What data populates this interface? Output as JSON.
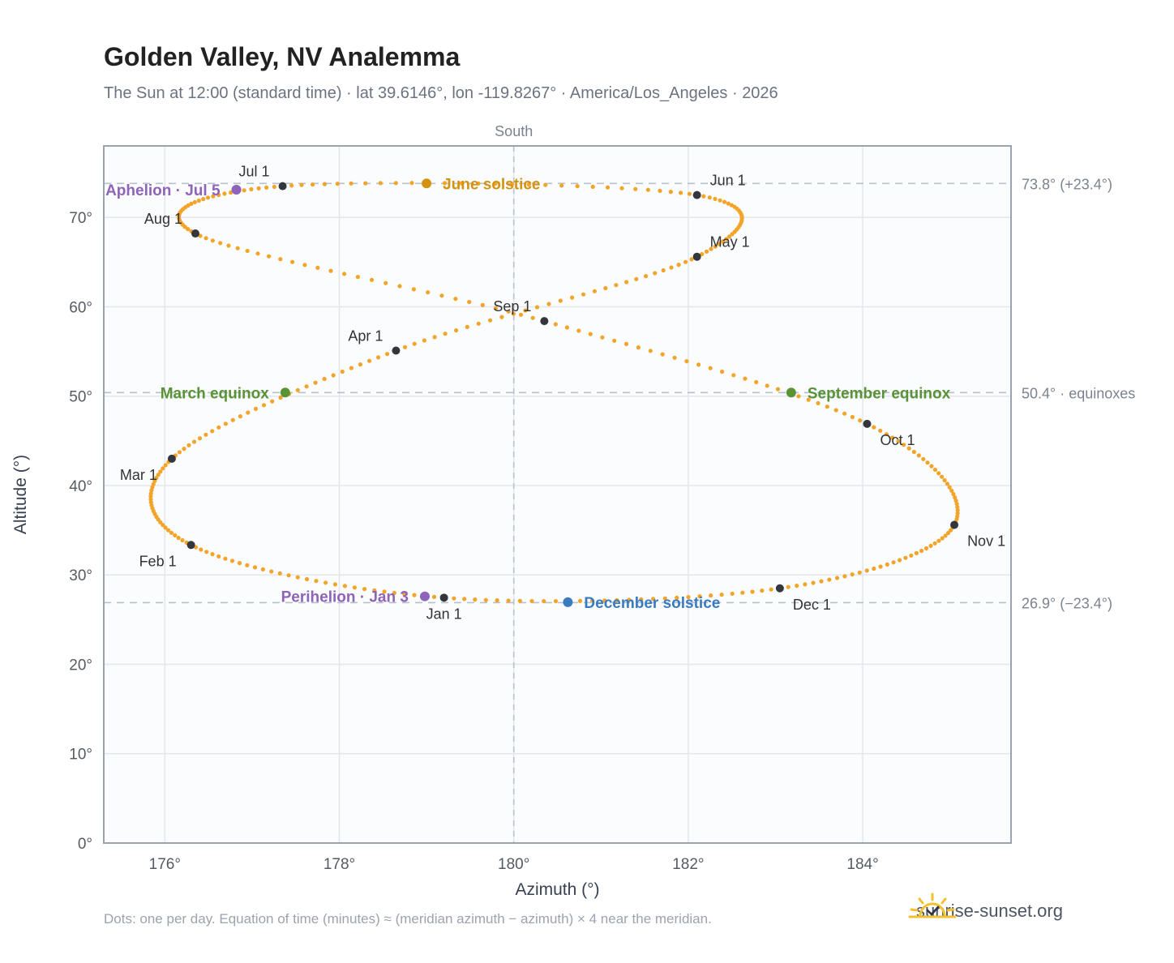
{
  "header": {
    "title": "Golden Valley, NV Analemma",
    "subtitle": "The Sun at 12:00 (standard time) · lat 39.6146°, lon -119.8267° · America/Los_Angeles · 2026"
  },
  "footer": {
    "note": "Dots: one per day. Equation of time (minutes) ≈ (meridian azimuth − azimuth) × 4 near the meridian.",
    "brand": "sunrise-sunset.org"
  },
  "chart_data": {
    "type": "scatter",
    "xlabel": "Azimuth (°)",
    "ylabel": "Altitude (°)",
    "xlim": [
      175.3,
      185.7
    ],
    "ylim": [
      0,
      78
    ],
    "x_ticks": [
      176,
      178,
      180,
      182,
      184
    ],
    "x_tick_labels": [
      "176°",
      "178°",
      "180°",
      "182°",
      "184°"
    ],
    "y_ticks": [
      0,
      10,
      20,
      30,
      40,
      50,
      60,
      70
    ],
    "y_tick_labels": [
      "0°",
      "10°",
      "20°",
      "30°",
      "40°",
      "50°",
      "60°",
      "70°"
    ],
    "grid": true,
    "meridian": {
      "x": 180,
      "label": "South"
    },
    "reference_lines": [
      {
        "y": 73.8,
        "label": "73.8° (+23.4°)"
      },
      {
        "y": 50.4,
        "label": "50.4° · equinoxes"
      },
      {
        "y": 26.9,
        "label": "26.9° (−23.4°)"
      }
    ],
    "path_anchors": [
      {
        "x": 179.2,
        "y": 27.45
      },
      {
        "x": 176.3,
        "y": 33.35
      },
      {
        "x": 176.08,
        "y": 43.0
      },
      {
        "x": 178.65,
        "y": 55.1
      },
      {
        "x": 182.1,
        "y": 65.6
      },
      {
        "x": 182.1,
        "y": 72.5
      },
      {
        "x": 177.35,
        "y": 73.5
      },
      {
        "x": 176.35,
        "y": 68.2
      },
      {
        "x": 180.35,
        "y": 58.4
      },
      {
        "x": 184.05,
        "y": 46.9
      },
      {
        "x": 185.05,
        "y": 35.6
      },
      {
        "x": 183.05,
        "y": 28.5
      },
      {
        "x": 179.2,
        "y": 27.45
      }
    ],
    "months": [
      {
        "label": "Jan 1",
        "x": 179.2,
        "y": 27.45,
        "pos": "below"
      },
      {
        "label": "Feb 1",
        "x": 176.3,
        "y": 33.35,
        "pos": "below-left"
      },
      {
        "label": "Mar 1",
        "x": 176.08,
        "y": 43.0,
        "pos": "below-left"
      },
      {
        "label": "Apr 1",
        "x": 178.65,
        "y": 55.1,
        "pos": "above-left"
      },
      {
        "label": "May 1",
        "x": 182.1,
        "y": 65.6,
        "pos": "above-right"
      },
      {
        "label": "Jun 1",
        "x": 182.1,
        "y": 72.5,
        "pos": "above-right"
      },
      {
        "label": "Jul 1",
        "x": 177.35,
        "y": 73.5,
        "pos": "above-left"
      },
      {
        "label": "Aug 1",
        "x": 176.35,
        "y": 68.2,
        "pos": "above-left"
      },
      {
        "label": "Sep 1",
        "x": 180.35,
        "y": 58.4,
        "pos": "above-left"
      },
      {
        "label": "Oct 1",
        "x": 184.05,
        "y": 46.9,
        "pos": "below-right"
      },
      {
        "label": "Nov 1",
        "x": 185.05,
        "y": 35.6,
        "pos": "below-right"
      },
      {
        "label": "Dec 1",
        "x": 183.05,
        "y": 28.5,
        "pos": "below-right"
      }
    ],
    "events": [
      {
        "label": "June solstice",
        "x": 179.0,
        "y": 73.8,
        "color": "#d4920f",
        "side": "right"
      },
      {
        "label": "December solstice",
        "x": 180.62,
        "y": 26.95,
        "color": "#3a7bbf",
        "side": "right"
      },
      {
        "label": "March equinox",
        "x": 177.38,
        "y": 50.4,
        "color": "#5a9236",
        "side": "left"
      },
      {
        "label": "September equinox",
        "x": 183.18,
        "y": 50.4,
        "color": "#5a9236",
        "side": "right"
      },
      {
        "label": "Aphelion · Jul 5",
        "x": 176.82,
        "y": 73.1,
        "color": "#8e63b8",
        "side": "left"
      },
      {
        "label": "Perihelion · Jan 3",
        "x": 178.98,
        "y": 27.6,
        "color": "#8e63b8",
        "side": "left"
      }
    ],
    "colors": {
      "path": "#f2a52a",
      "month_marker": "#33373d",
      "grid": "#e3e7ec",
      "plot_bg": "#fafcfe",
      "frame": "#9aa4b1",
      "reference": "#b7c0cc"
    }
  }
}
